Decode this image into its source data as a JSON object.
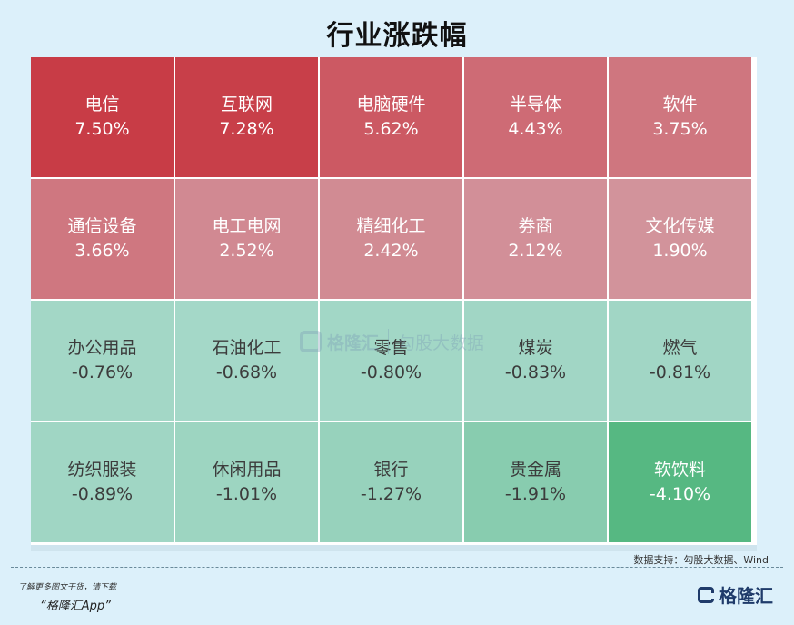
{
  "title": "行业涨跌幅",
  "source": "数据支持：勾股大数据、Wind",
  "footer": {
    "line1": "了解更多图文干货，请下载",
    "line2": "“格隆汇App”",
    "logo_text": "格隆汇"
  },
  "watermark": {
    "brand": "格隆汇",
    "text": "勾股大数据"
  },
  "colors": {
    "strong_up": "#c83e47",
    "up": "#cf6a72",
    "mild_up": "#d69ca2",
    "flat_down": "#b2dcd4",
    "down": "#98d4c0",
    "strong_down": "#56b882"
  },
  "chart_data": {
    "type": "treemap",
    "title": "行业涨跌幅",
    "unit": "%",
    "items": [
      {
        "name": "电信",
        "value": 7.5,
        "label": "7.50%"
      },
      {
        "name": "互联网",
        "value": 7.28,
        "label": "7.28%"
      },
      {
        "name": "电脑硬件",
        "value": 5.62,
        "label": "5.62%"
      },
      {
        "name": "半导体",
        "value": 4.43,
        "label": "4.43%"
      },
      {
        "name": "软件",
        "value": 3.75,
        "label": "3.75%"
      },
      {
        "name": "通信设备",
        "value": 3.66,
        "label": "3.66%"
      },
      {
        "name": "电工电网",
        "value": 2.52,
        "label": "2.52%"
      },
      {
        "name": "精细化工",
        "value": 2.42,
        "label": "2.42%"
      },
      {
        "name": "券商",
        "value": 2.12,
        "label": "2.12%"
      },
      {
        "name": "文化传媒",
        "value": 1.9,
        "label": "1.90%"
      },
      {
        "name": "办公用品",
        "value": -0.76,
        "label": "-0.76%"
      },
      {
        "name": "石油化工",
        "value": -0.68,
        "label": "-0.68%"
      },
      {
        "name": "零售",
        "value": -0.8,
        "label": "-0.80%"
      },
      {
        "name": "煤炭",
        "value": -0.83,
        "label": "-0.83%"
      },
      {
        "name": "燃气",
        "value": -0.81,
        "label": "-0.81%"
      },
      {
        "name": "纺织服装",
        "value": -0.89,
        "label": "-0.89%"
      },
      {
        "name": "休闲用品",
        "value": -1.01,
        "label": "-1.01%"
      },
      {
        "name": "银行",
        "value": -1.27,
        "label": "-1.27%"
      },
      {
        "name": "贵金属",
        "value": -1.91,
        "label": "-1.91%"
      },
      {
        "name": "软饮料",
        "value": -4.1,
        "label": "-4.10%"
      }
    ]
  }
}
